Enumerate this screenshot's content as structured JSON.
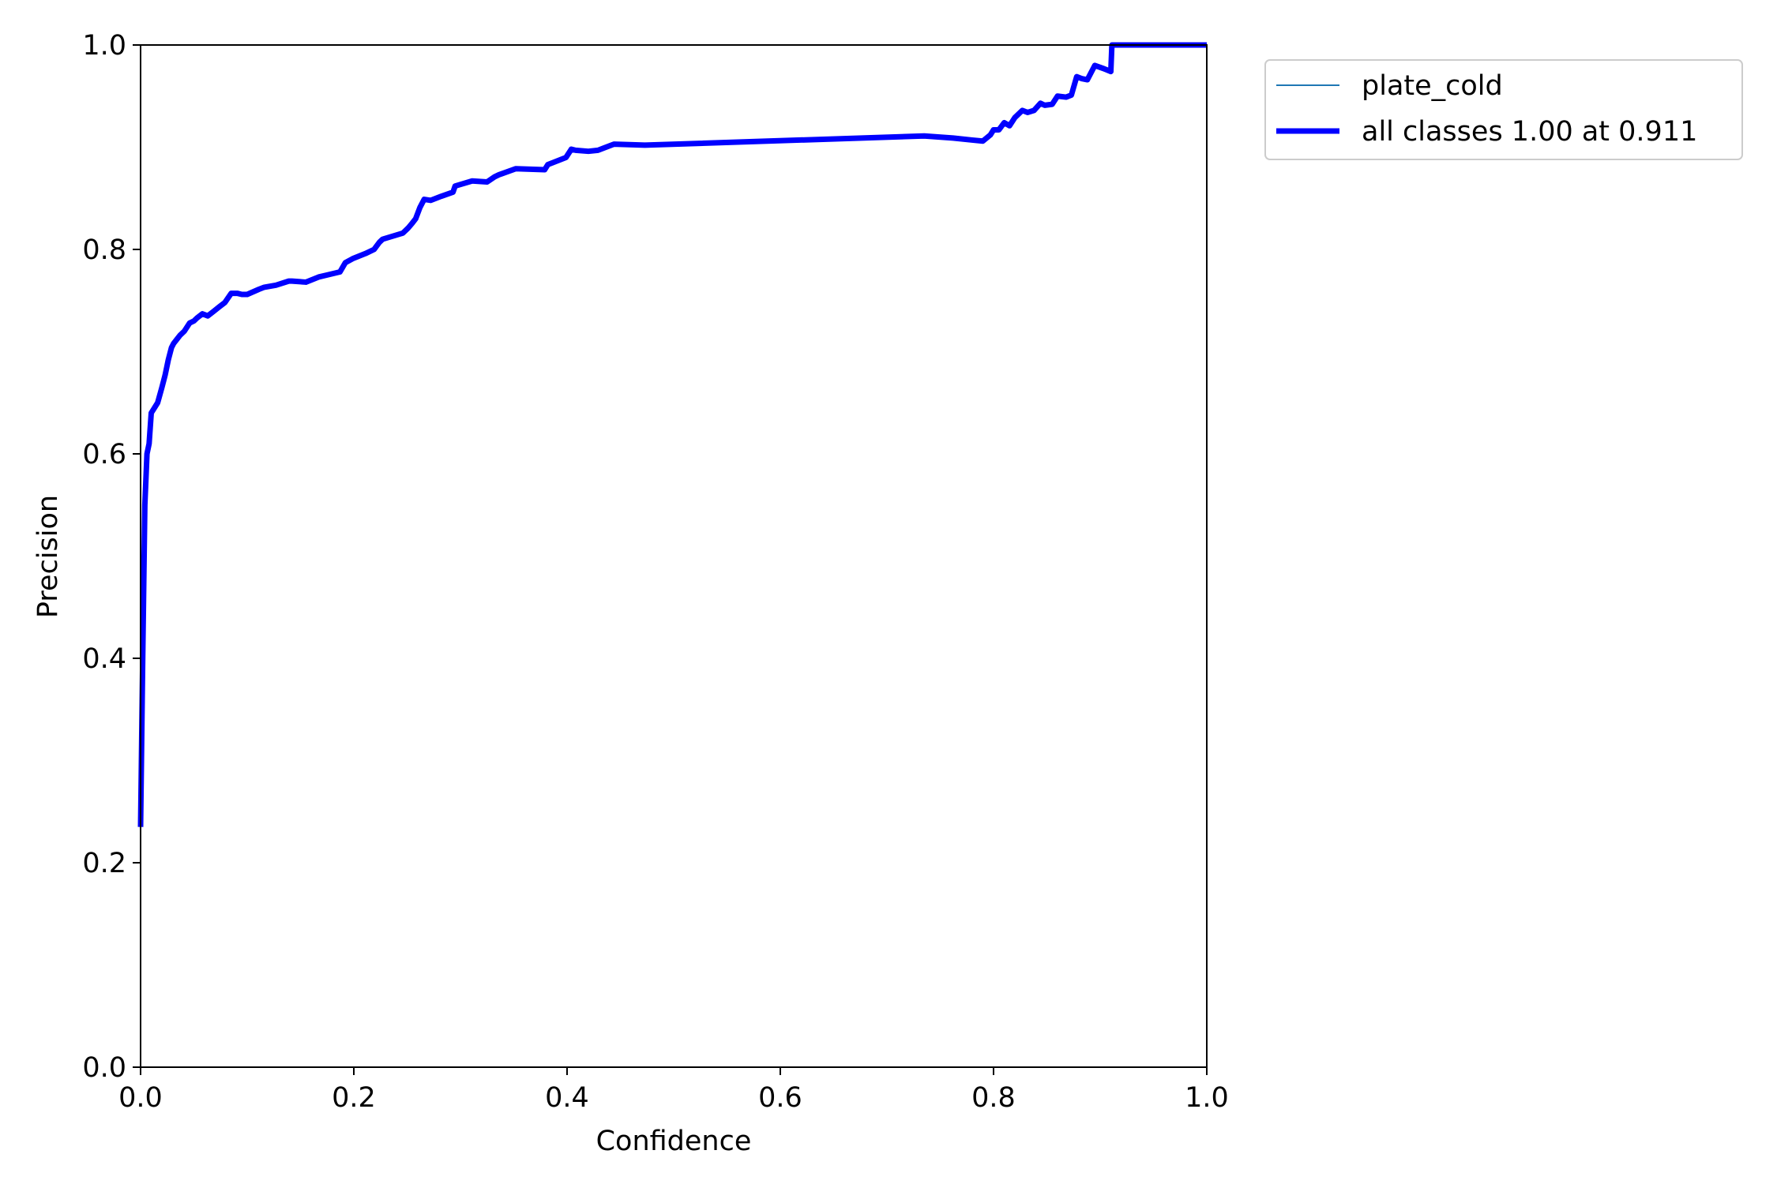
{
  "chart_data": {
    "type": "line",
    "title": "",
    "xlabel": "Confidence",
    "ylabel": "Precision",
    "xlim": [
      0,
      1
    ],
    "ylim": [
      0,
      1
    ],
    "xticks": [
      "0.0",
      "0.2",
      "0.4",
      "0.6",
      "0.8",
      "1.0"
    ],
    "yticks": [
      "0.0",
      "0.2",
      "0.4",
      "0.6",
      "0.8",
      "1.0"
    ],
    "grid": false,
    "legend_placement": "outside-top-right",
    "series": [
      {
        "name": "plate_cold",
        "color": "#1f77b4",
        "style": "thin",
        "x": [
          0.0,
          0.002,
          0.004,
          0.006,
          0.008,
          0.01,
          0.013,
          0.016,
          0.02,
          0.023,
          0.026,
          0.029,
          0.031,
          0.034,
          0.037,
          0.041,
          0.046,
          0.05,
          0.053,
          0.058,
          0.063,
          0.068,
          0.074,
          0.079,
          0.085,
          0.091,
          0.095,
          0.1,
          0.111,
          0.116,
          0.127,
          0.139,
          0.142,
          0.155,
          0.167,
          0.175,
          0.187,
          0.192,
          0.199,
          0.211,
          0.219,
          0.224,
          0.227,
          0.246,
          0.251,
          0.255,
          0.258,
          0.262,
          0.266,
          0.272,
          0.282,
          0.293,
          0.295,
          0.311,
          0.325,
          0.332,
          0.336,
          0.352,
          0.379,
          0.382,
          0.387,
          0.399,
          0.404,
          0.408,
          0.42,
          0.429,
          0.444,
          0.473,
          0.735,
          0.762,
          0.78,
          0.79,
          0.797,
          0.8,
          0.805,
          0.81,
          0.815,
          0.82,
          0.827,
          0.832,
          0.838,
          0.844,
          0.848,
          0.855,
          0.86,
          0.868,
          0.873,
          0.878,
          0.883,
          0.888,
          0.895,
          0.903,
          0.91,
          0.911,
          0.93,
          0.96,
          1.0
        ],
        "y": [
          0.235,
          0.4,
          0.55,
          0.6,
          0.61,
          0.64,
          0.645,
          0.65,
          0.665,
          0.677,
          0.692,
          0.704,
          0.708,
          0.712,
          0.716,
          0.72,
          0.728,
          0.73,
          0.733,
          0.737,
          0.735,
          0.739,
          0.744,
          0.748,
          0.757,
          0.757,
          0.756,
          0.756,
          0.761,
          0.763,
          0.765,
          0.769,
          0.769,
          0.768,
          0.773,
          0.775,
          0.778,
          0.787,
          0.791,
          0.796,
          0.8,
          0.807,
          0.81,
          0.816,
          0.821,
          0.826,
          0.83,
          0.841,
          0.849,
          0.848,
          0.852,
          0.856,
          0.862,
          0.867,
          0.866,
          0.871,
          0.873,
          0.879,
          0.878,
          0.883,
          0.885,
          0.89,
          0.898,
          0.897,
          0.896,
          0.897,
          0.903,
          0.902,
          0.911,
          0.909,
          0.907,
          0.906,
          0.912,
          0.917,
          0.917,
          0.924,
          0.921,
          0.929,
          0.936,
          0.934,
          0.936,
          0.943,
          0.941,
          0.942,
          0.95,
          0.949,
          0.951,
          0.969,
          0.967,
          0.966,
          0.98,
          0.977,
          0.974,
          1.0,
          1.0,
          1.0,
          1.0
        ]
      },
      {
        "name": "all classes 1.00 at 0.911",
        "color": "#0000ff",
        "style": "thick",
        "x": [
          0.0,
          0.002,
          0.004,
          0.006,
          0.008,
          0.01,
          0.013,
          0.016,
          0.02,
          0.023,
          0.026,
          0.029,
          0.031,
          0.034,
          0.037,
          0.041,
          0.046,
          0.05,
          0.053,
          0.058,
          0.063,
          0.068,
          0.074,
          0.079,
          0.085,
          0.091,
          0.095,
          0.1,
          0.111,
          0.116,
          0.127,
          0.139,
          0.142,
          0.155,
          0.167,
          0.175,
          0.187,
          0.192,
          0.199,
          0.211,
          0.219,
          0.224,
          0.227,
          0.246,
          0.251,
          0.255,
          0.258,
          0.262,
          0.266,
          0.272,
          0.282,
          0.293,
          0.295,
          0.311,
          0.325,
          0.332,
          0.336,
          0.352,
          0.379,
          0.382,
          0.387,
          0.399,
          0.404,
          0.408,
          0.42,
          0.429,
          0.444,
          0.473,
          0.735,
          0.762,
          0.78,
          0.79,
          0.797,
          0.8,
          0.805,
          0.81,
          0.815,
          0.82,
          0.827,
          0.832,
          0.838,
          0.844,
          0.848,
          0.855,
          0.86,
          0.868,
          0.873,
          0.878,
          0.883,
          0.888,
          0.895,
          0.903,
          0.91,
          0.911,
          0.93,
          0.96,
          1.0
        ],
        "y": [
          0.235,
          0.4,
          0.55,
          0.6,
          0.61,
          0.64,
          0.645,
          0.65,
          0.665,
          0.677,
          0.692,
          0.704,
          0.708,
          0.712,
          0.716,
          0.72,
          0.728,
          0.73,
          0.733,
          0.737,
          0.735,
          0.739,
          0.744,
          0.748,
          0.757,
          0.757,
          0.756,
          0.756,
          0.761,
          0.763,
          0.765,
          0.769,
          0.769,
          0.768,
          0.773,
          0.775,
          0.778,
          0.787,
          0.791,
          0.796,
          0.8,
          0.807,
          0.81,
          0.816,
          0.821,
          0.826,
          0.83,
          0.841,
          0.849,
          0.848,
          0.852,
          0.856,
          0.862,
          0.867,
          0.866,
          0.871,
          0.873,
          0.879,
          0.878,
          0.883,
          0.885,
          0.89,
          0.898,
          0.897,
          0.896,
          0.897,
          0.903,
          0.902,
          0.911,
          0.909,
          0.907,
          0.906,
          0.912,
          0.917,
          0.917,
          0.924,
          0.921,
          0.929,
          0.936,
          0.934,
          0.936,
          0.943,
          0.941,
          0.942,
          0.95,
          0.949,
          0.951,
          0.969,
          0.967,
          0.966,
          0.98,
          0.977,
          0.974,
          1.0,
          1.0,
          1.0,
          1.0
        ]
      }
    ]
  }
}
